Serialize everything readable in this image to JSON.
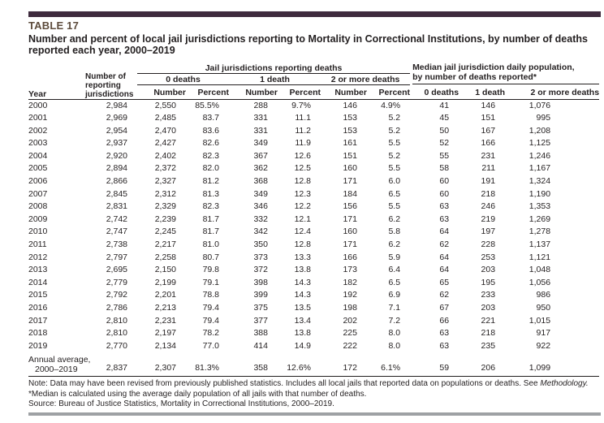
{
  "page": {
    "table_label": "TABLE 17",
    "title": "Number and percent of local jail jurisdictions reporting to Mortality in Correctional Institutions, by number of deaths reported each year, 2000–2019"
  },
  "colors": {
    "top_bar": "#3f2b3e",
    "table_label_text": "#5d4b3c",
    "body_text": "#231f20",
    "rule": "#231f20",
    "bottom_bar": "#9ea1a4"
  },
  "header": {
    "year": "Year",
    "reporting_jurisdictions": "Number of reporting jurisdictions",
    "group_jail": "Jail jurisdictions reporting deaths",
    "group_median_line1": "Median jail jurisdiction daily population,",
    "group_median_line2": "by number of deaths reported*",
    "deaths_0": "0 deaths",
    "deaths_1": "1 death",
    "deaths_2plus": "2 or more deaths",
    "number": "Number",
    "percent": "Percent",
    "median_0": "0 deaths",
    "median_1": "1 death",
    "median_2plus": "2 or more deaths"
  },
  "table": {
    "rows": [
      [
        "2000",
        "2,984",
        "2,550",
        "85.5%",
        "288",
        "9.7%",
        "146",
        "4.9%",
        "41",
        "146",
        "1,076"
      ],
      [
        "2001",
        "2,969",
        "2,485",
        "83.7",
        "331",
        "11.1",
        "153",
        "5.2",
        "45",
        "151",
        "995"
      ],
      [
        "2002",
        "2,954",
        "2,470",
        "83.6",
        "331",
        "11.2",
        "153",
        "5.2",
        "50",
        "167",
        "1,208"
      ],
      [
        "2003",
        "2,937",
        "2,427",
        "82.6",
        "349",
        "11.9",
        "161",
        "5.5",
        "52",
        "166",
        "1,125"
      ],
      [
        "2004",
        "2,920",
        "2,402",
        "82.3",
        "367",
        "12.6",
        "151",
        "5.2",
        "55",
        "231",
        "1,246"
      ],
      [
        "2005",
        "2,894",
        "2,372",
        "82.0",
        "362",
        "12.5",
        "160",
        "5.5",
        "58",
        "211",
        "1,167"
      ],
      [
        "2006",
        "2,866",
        "2,327",
        "81.2",
        "368",
        "12.8",
        "171",
        "6.0",
        "60",
        "191",
        "1,324"
      ],
      [
        "2007",
        "2,845",
        "2,312",
        "81.3",
        "349",
        "12.3",
        "184",
        "6.5",
        "60",
        "218",
        "1,190"
      ],
      [
        "2008",
        "2,831",
        "2,329",
        "82.3",
        "346",
        "12.2",
        "156",
        "5.5",
        "63",
        "246",
        "1,353"
      ],
      [
        "2009",
        "2,742",
        "2,239",
        "81.7",
        "332",
        "12.1",
        "171",
        "6.2",
        "63",
        "219",
        "1,269"
      ],
      [
        "2010",
        "2,747",
        "2,245",
        "81.7",
        "342",
        "12.4",
        "160",
        "5.8",
        "64",
        "197",
        "1,278"
      ],
      [
        "2011",
        "2,738",
        "2,217",
        "81.0",
        "350",
        "12.8",
        "171",
        "6.2",
        "62",
        "228",
        "1,137"
      ],
      [
        "2012",
        "2,797",
        "2,258",
        "80.7",
        "373",
        "13.3",
        "166",
        "5.9",
        "64",
        "253",
        "1,121"
      ],
      [
        "2013",
        "2,695",
        "2,150",
        "79.8",
        "372",
        "13.8",
        "173",
        "6.4",
        "64",
        "203",
        "1,048"
      ],
      [
        "2014",
        "2,779",
        "2,199",
        "79.1",
        "398",
        "14.3",
        "182",
        "6.5",
        "65",
        "195",
        "1,056"
      ],
      [
        "2015",
        "2,792",
        "2,201",
        "78.8",
        "399",
        "14.3",
        "192",
        "6.9",
        "62",
        "233",
        "986"
      ],
      [
        "2016",
        "2,786",
        "2,213",
        "79.4",
        "375",
        "13.5",
        "198",
        "7.1",
        "67",
        "203",
        "950"
      ],
      [
        "2017",
        "2,810",
        "2,231",
        "79.4",
        "377",
        "13.4",
        "202",
        "7.2",
        "66",
        "221",
        "1,015"
      ],
      [
        "2018",
        "2,810",
        "2,197",
        "78.2",
        "388",
        "13.8",
        "225",
        "8.0",
        "63",
        "218",
        "917"
      ],
      [
        "2019",
        "2,770",
        "2,134",
        "77.0",
        "414",
        "14.9",
        "222",
        "8.0",
        "63",
        "235",
        "922"
      ]
    ],
    "annual": {
      "label_line1": "Annual average,",
      "label_line2": "2000–2019",
      "values": [
        "2,837",
        "2,307",
        "81.3%",
        "358",
        "12.6%",
        "172",
        "6.1%",
        "59",
        "206",
        "1,099"
      ]
    }
  },
  "footer": {
    "note_prefix": "Note: Data may have been revised from previously published statistics. Includes all local jails that reported data on populations or deaths. See ",
    "note_italic": "Methodology.",
    "median_note": "*Median is calculated using the average daily population of all jails with that number of deaths.",
    "source": "Source: Bureau of Justice Statistics, Mortality in Correctional Institutions, 2000–2019."
  }
}
